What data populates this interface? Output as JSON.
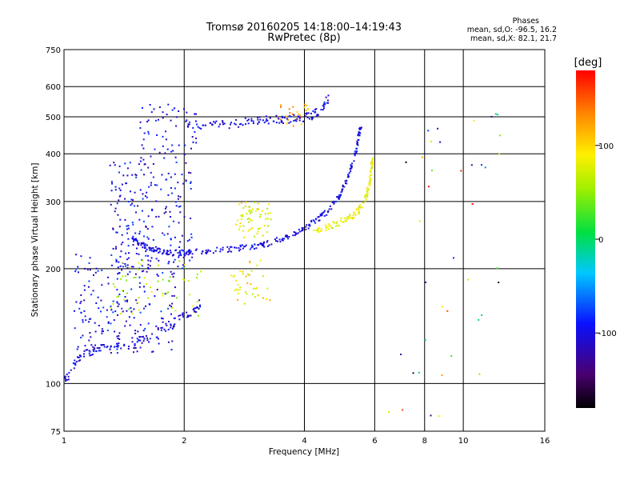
{
  "header": {
    "title": "Tromsø 20160205 14:18:00–14:19:43",
    "subtitle": "RwPretec (8p)"
  },
  "phases": {
    "title": "Phases",
    "o_line": "mean, sd,O: -96.5, 16.2",
    "x_line": "mean, sd,X:  82.1, 21.7"
  },
  "colorbar": {
    "label": "[deg]",
    "ticks": [
      "100",
      "0",
      "-100"
    ],
    "tick_values": [
      100,
      0,
      -100
    ],
    "range": [
      -180,
      180
    ]
  },
  "chart_data": {
    "type": "scatter",
    "title": "Tromsø 20160205 14:18:00–14:19:43",
    "subtitle": "RwPretec (8p)",
    "xlabel": "Frequency [MHz]",
    "ylabel": "Stationary phase Virtual Height [km]",
    "x_scale": "log",
    "y_scale": "log",
    "xlim": [
      1,
      16
    ],
    "ylim": [
      75,
      750
    ],
    "x_ticks": [
      1,
      2,
      4,
      6,
      8,
      10,
      16
    ],
    "x_tick_labels": [
      "1",
      "2",
      "4",
      "6",
      "8",
      "10",
      "16"
    ],
    "y_ticks": [
      75,
      100,
      200,
      300,
      400,
      500,
      600,
      750
    ],
    "y_tick_labels": [
      "75",
      "100",
      "200",
      "300",
      "400",
      "500",
      "600",
      "750"
    ],
    "grid": true,
    "o_mode_trace": {
      "color_deg": -100,
      "points": [
        [
          1.48,
          240
        ],
        [
          1.55,
          232
        ],
        [
          1.65,
          226
        ],
        [
          1.75,
          222
        ],
        [
          1.85,
          220
        ],
        [
          2.0,
          220
        ],
        [
          2.2,
          222
        ],
        [
          2.5,
          224
        ],
        [
          2.8,
          227
        ],
        [
          3.1,
          230
        ],
        [
          3.4,
          236
        ],
        [
          3.7,
          245
        ],
        [
          4.0,
          255
        ],
        [
          4.3,
          268
        ],
        [
          4.6,
          285
        ],
        [
          4.9,
          310
        ],
        [
          5.1,
          340
        ],
        [
          5.3,
          380
        ],
        [
          5.45,
          430
        ],
        [
          5.55,
          480
        ]
      ]
    },
    "x_mode_trace": {
      "color_deg": 80,
      "points": [
        [
          4.2,
          250
        ],
        [
          4.5,
          255
        ],
        [
          4.8,
          262
        ],
        [
          5.1,
          270
        ],
        [
          5.4,
          280
        ],
        [
          5.6,
          295
        ],
        [
          5.75,
          315
        ],
        [
          5.85,
          340
        ],
        [
          5.9,
          370
        ],
        [
          5.95,
          390
        ]
      ]
    },
    "upper_layer": {
      "color_deg": -100,
      "points": [
        [
          2.0,
          480
        ],
        [
          2.3,
          475
        ],
        [
          2.6,
          478
        ],
        [
          2.9,
          485
        ],
        [
          3.2,
          490
        ],
        [
          3.5,
          492
        ],
        [
          3.8,
          495
        ],
        [
          4.1,
          500
        ],
        [
          4.4,
          520
        ],
        [
          4.6,
          560
        ]
      ]
    },
    "lower_trace": {
      "color_deg": -100,
      "points": [
        [
          1.0,
          100
        ],
        [
          1.05,
          110
        ],
        [
          1.1,
          118
        ],
        [
          1.2,
          123
        ],
        [
          1.35,
          125
        ],
        [
          1.5,
          128
        ],
        [
          1.7,
          135
        ],
        [
          1.9,
          145
        ],
        [
          2.1,
          155
        ],
        [
          2.2,
          162
        ]
      ]
    },
    "clouds": [
      {
        "x_range": [
          1.3,
          2.1
        ],
        "y_range": [
          200,
          380
        ],
        "color_deg": -100,
        "count": 200
      },
      {
        "x_range": [
          1.05,
          1.9
        ],
        "y_range": [
          120,
          220
        ],
        "color_deg": -100,
        "count": 220
      },
      {
        "x_range": [
          1.3,
          2.2
        ],
        "y_range": [
          150,
          210
        ],
        "color_deg": 60,
        "count": 60
      },
      {
        "x_range": [
          1.55,
          2.15
        ],
        "y_range": [
          380,
          540
        ],
        "color_deg": -100,
        "count": 60
      },
      {
        "x_range": [
          2.7,
          3.3
        ],
        "y_range": [
          240,
          300
        ],
        "color_deg": 80,
        "count": 60
      },
      {
        "x_range": [
          2.6,
          3.3
        ],
        "y_range": [
          160,
          210
        ],
        "color_deg": 90,
        "count": 40
      },
      {
        "x_range": [
          3.4,
          4.1
        ],
        "y_range": [
          470,
          540
        ],
        "color_deg": 120,
        "count": 25
      },
      {
        "x_range": [
          6.4,
          12.5
        ],
        "y_range": [
          80,
          610
        ],
        "color_deg": 0,
        "count": 40
      }
    ]
  }
}
